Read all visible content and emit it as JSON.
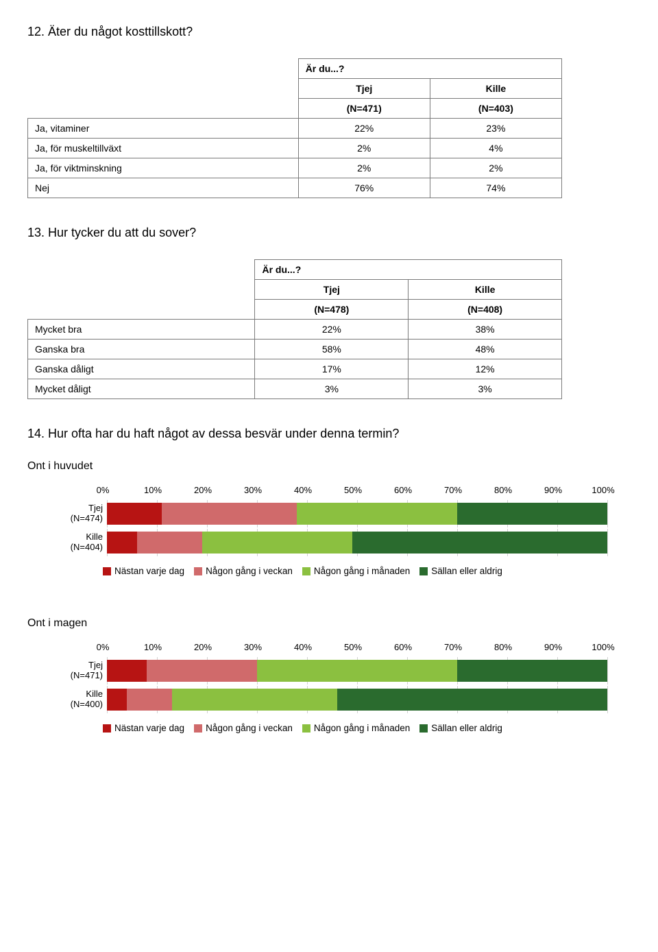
{
  "q12": {
    "title": "12. Äter du något kosttillskott?",
    "group_header": "Är du...?",
    "cols": [
      "Tjej",
      "Kille"
    ],
    "n_row": [
      "(N=471)",
      "(N=403)"
    ],
    "rows": [
      {
        "label": "Ja, vitaminer",
        "vals": [
          "22%",
          "23%"
        ]
      },
      {
        "label": "Ja, för muskeltillväxt",
        "vals": [
          "2%",
          "4%"
        ]
      },
      {
        "label": "Ja, för viktminskning",
        "vals": [
          "2%",
          "2%"
        ]
      },
      {
        "label": "Nej",
        "vals": [
          "76%",
          "74%"
        ]
      }
    ]
  },
  "q13": {
    "title": "13. Hur tycker du att du sover?",
    "group_header": "Är du...?",
    "cols": [
      "Tjej",
      "Kille"
    ],
    "n_row": [
      "(N=478)",
      "(N=408)"
    ],
    "rows": [
      {
        "label": "Mycket bra",
        "vals": [
          "22%",
          "38%"
        ]
      },
      {
        "label": "Ganska bra",
        "vals": [
          "58%",
          "48%"
        ]
      },
      {
        "label": "Ganska dåligt",
        "vals": [
          "17%",
          "12%"
        ]
      },
      {
        "label": "Mycket dåligt",
        "vals": [
          "3%",
          "3%"
        ]
      }
    ]
  },
  "q14": {
    "title": "14. Hur ofta har du haft något av dessa besvär under denna termin?",
    "axis": {
      "ticks": [
        "0%",
        "10%",
        "20%",
        "30%",
        "40%",
        "50%",
        "60%",
        "70%",
        "80%",
        "90%",
        "100%"
      ],
      "positions": [
        0,
        10,
        20,
        30,
        40,
        50,
        60,
        70,
        80,
        90,
        100
      ]
    },
    "colors": {
      "c1": "#b71413",
      "c2": "#d06a6b",
      "c3": "#8bc040",
      "c4": "#2a6b2e"
    },
    "legend": [
      "Nästan varje dag",
      "Någon gång i veckan",
      "Någon gång i månaden",
      "Sällan eller aldrig"
    ],
    "charts": [
      {
        "subtitle": "Ont i huvudet",
        "bars": [
          {
            "label_top": "Tjej",
            "label_bot": "(N=474)",
            "segs": [
              11,
              27,
              32,
              30
            ]
          },
          {
            "label_top": "Kille",
            "label_bot": "(N=404)",
            "segs": [
              6,
              13,
              30,
              51
            ]
          }
        ]
      },
      {
        "subtitle": "Ont i magen",
        "bars": [
          {
            "label_top": "Tjej",
            "label_bot": "(N=471)",
            "segs": [
              8,
              22,
              40,
              30
            ]
          },
          {
            "label_top": "Kille",
            "label_bot": "(N=400)",
            "segs": [
              4,
              9,
              33,
              54
            ]
          }
        ]
      }
    ]
  }
}
